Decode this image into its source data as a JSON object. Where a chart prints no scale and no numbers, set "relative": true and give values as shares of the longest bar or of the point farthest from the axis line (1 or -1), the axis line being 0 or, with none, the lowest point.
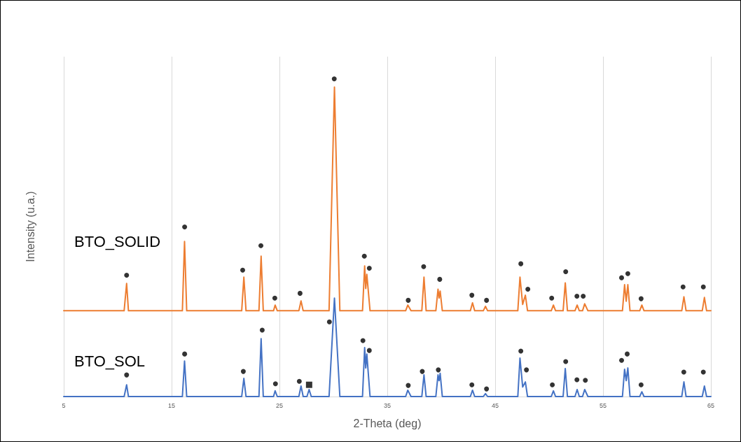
{
  "chart_data": {
    "type": "line",
    "xlabel": "2-Theta (deg)",
    "ylabel": "Intensity (u.a.)",
    "relative": true,
    "xlim": [
      5,
      65
    ],
    "xticks": [
      5,
      15,
      25,
      35,
      45,
      55,
      65
    ],
    "grid": "x",
    "tick_labels": "x",
    "legend": false,
    "marker": "none",
    "line_style": "solid",
    "series": [
      {
        "name": "BTO_SOLID",
        "color": "#ed7d31",
        "x": [
          5,
          10.6,
          10.83,
          11.0,
          16.0,
          16.2,
          16.4,
          21.5,
          21.7,
          21.9,
          23.1,
          23.3,
          23.5,
          24.45,
          24.6,
          24.8,
          26.8,
          27.0,
          27.2,
          29.6,
          30.1,
          30.6,
          32.7,
          32.9,
          33.0,
          33.1,
          33.4,
          36.7,
          36.9,
          37.2,
          38.2,
          38.4,
          38.6,
          39.5,
          39.7,
          39.8,
          39.9,
          40.1,
          42.7,
          42.9,
          43.1,
          43.9,
          44.1,
          44.3,
          47.1,
          47.3,
          47.55,
          47.8,
          48.0,
          50.2,
          50.4,
          50.6,
          51.3,
          51.5,
          51.7,
          52.4,
          52.6,
          52.8,
          53.1,
          53.3,
          53.6,
          56.8,
          57.0,
          57.15,
          57.3,
          57.5,
          58.4,
          58.6,
          58.8,
          62.3,
          62.5,
          62.7,
          64.2,
          64.4,
          64.6,
          65
        ],
        "values": [
          0.27,
          0.27,
          0.356,
          0.27,
          0.27,
          0.488,
          0.27,
          0.27,
          0.376,
          0.27,
          0.27,
          0.442,
          0.27,
          0.27,
          0.288,
          0.27,
          0.27,
          0.301,
          0.27,
          0.27,
          0.974,
          0.27,
          0.27,
          0.411,
          0.34,
          0.385,
          0.27,
          0.27,
          0.288,
          0.27,
          0.27,
          0.376,
          0.27,
          0.27,
          0.338,
          0.31,
          0.332,
          0.27,
          0.27,
          0.295,
          0.27,
          0.27,
          0.284,
          0.27,
          0.27,
          0.376,
          0.29,
          0.319,
          0.27,
          0.27,
          0.288,
          0.27,
          0.27,
          0.358,
          0.27,
          0.27,
          0.288,
          0.27,
          0.27,
          0.292,
          0.27,
          0.27,
          0.352,
          0.3,
          0.352,
          0.27,
          0.27,
          0.288,
          0.27,
          0.27,
          0.314,
          0.27,
          0.27,
          0.312,
          0.27,
          0.27
        ]
      },
      {
        "name": "BTO_SOL",
        "color": "#4472c4",
        "x": [
          5,
          10.6,
          10.83,
          11.0,
          16.0,
          16.2,
          16.4,
          21.5,
          21.7,
          21.9,
          23.1,
          23.3,
          23.5,
          24.45,
          24.6,
          24.8,
          26.8,
          27.0,
          27.2,
          27.55,
          27.75,
          27.95,
          29.6,
          30.1,
          30.6,
          32.7,
          32.9,
          33.0,
          33.1,
          33.4,
          36.7,
          36.9,
          37.2,
          38.2,
          38.4,
          38.6,
          39.5,
          39.7,
          39.8,
          39.9,
          40.1,
          42.7,
          42.9,
          43.1,
          43.9,
          44.1,
          44.3,
          47.1,
          47.3,
          47.55,
          47.8,
          48.0,
          50.2,
          50.4,
          50.6,
          51.3,
          51.5,
          51.7,
          52.4,
          52.6,
          52.8,
          53.1,
          53.3,
          53.6,
          56.8,
          57.0,
          57.15,
          57.3,
          57.5,
          58.4,
          58.6,
          58.8,
          62.3,
          62.5,
          62.7,
          64.2,
          64.4,
          64.6,
          65
        ],
        "values": [
          0,
          0,
          0.037,
          0,
          0,
          0.112,
          0,
          0,
          0.057,
          0,
          0,
          0.182,
          0,
          0,
          0.018,
          0,
          0,
          0.033,
          0,
          0,
          0.022,
          0,
          0,
          0.31,
          0,
          0,
          0.154,
          0.09,
          0.134,
          0,
          0,
          0.02,
          0,
          0,
          0.068,
          0,
          0,
          0.068,
          0.05,
          0.073,
          0,
          0,
          0.02,
          0,
          0,
          0.009,
          0,
          0,
          0.121,
          0.03,
          0.046,
          0,
          0,
          0.018,
          0,
          0,
          0.088,
          0,
          0,
          0.022,
          0,
          0,
          0.022,
          0,
          0,
          0.086,
          0.05,
          0.09,
          0,
          0,
          0.015,
          0,
          0,
          0.046,
          0,
          0,
          0.033,
          0,
          0
        ]
      },
      {
        "type": "scatter",
        "marker": "circle",
        "color": "#000000",
        "x": [
          10.83,
          16.21,
          21.59,
          23.28,
          24.57,
          26.91,
          30.08,
          32.87,
          33.33,
          36.94,
          38.37,
          39.86,
          42.84,
          44.2,
          47.38,
          48.03,
          50.24,
          51.54,
          52.58,
          53.16,
          56.72,
          57.3,
          58.53,
          62.42,
          64.3
        ],
        "values": [
          0.382,
          0.534,
          0.398,
          0.475,
          0.31,
          0.325,
          1,
          0.442,
          0.404,
          0.303,
          0.409,
          0.369,
          0.319,
          0.303,
          0.418,
          0.338,
          0.31,
          0.393,
          0.316,
          0.316,
          0.374,
          0.387,
          0.308,
          0.345,
          0.345
        ]
      },
      {
        "type": "scatter",
        "marker": "circle",
        "color": "#000000",
        "x": [
          10.83,
          16.21,
          21.65,
          23.4,
          24.63,
          26.84,
          29.63,
          32.74,
          33.33,
          36.94,
          38.24,
          39.73,
          42.84,
          44.2,
          47.38,
          47.9,
          50.3,
          51.54,
          52.58,
          53.36,
          56.72,
          57.24,
          58.53,
          62.49,
          64.3
        ],
        "values": [
          0.068,
          0.134,
          0.079,
          0.209,
          0.04,
          0.048,
          0.235,
          0.176,
          0.145,
          0.035,
          0.079,
          0.084,
          0.037,
          0.024,
          0.143,
          0.084,
          0.037,
          0.11,
          0.053,
          0.051,
          0.114,
          0.134,
          0.037,
          0.077,
          0.077
        ]
      },
      {
        "type": "scatter",
        "marker": "square",
        "color": "#000000",
        "x": [
          27.75
        ],
        "values": [
          0.037
        ]
      }
    ]
  }
}
